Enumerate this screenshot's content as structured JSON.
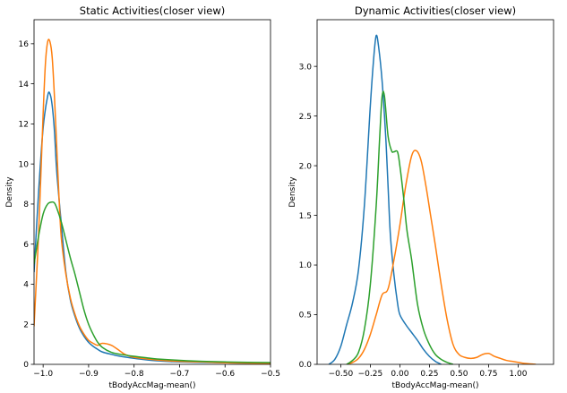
{
  "figure": {
    "background": "#ffffff"
  },
  "chart_data": [
    {
      "type": "line",
      "title": "Static Activities(closer view)",
      "xlabel": "tBodyAccMag-mean()",
      "ylabel": "Density",
      "xlim": [
        -1.02,
        -0.5
      ],
      "ylim": [
        0,
        17.2
      ],
      "xticks": [
        -1.0,
        -0.9,
        -0.8,
        -0.7,
        -0.6,
        -0.5
      ],
      "xtick_labels": [
        "−1.0",
        "−0.9",
        "−0.8",
        "−0.7",
        "−0.6",
        "−0.5"
      ],
      "yticks": [
        0,
        2,
        4,
        6,
        8,
        10,
        12,
        14,
        16
      ],
      "ytick_labels": [
        "0",
        "2",
        "4",
        "6",
        "8",
        "10",
        "12",
        "14",
        "16"
      ],
      "series": [
        {
          "name": "blue",
          "color": "#1f77b4",
          "x": [
            -1.02,
            -1.01,
            -1.0,
            -0.99,
            -0.985,
            -0.98,
            -0.975,
            -0.97,
            -0.96,
            -0.95,
            -0.94,
            -0.93,
            -0.92,
            -0.91,
            -0.9,
            -0.89,
            -0.88,
            -0.87,
            -0.85,
            -0.83,
            -0.8,
            -0.77,
            -0.75,
            -0.72,
            -0.7,
            -0.65,
            -0.6,
            -0.55,
            -0.5
          ],
          "y": [
            4.6,
            8.6,
            11.8,
            13.4,
            13.5,
            12.9,
            11.6,
            9.6,
            7.0,
            4.6,
            3.2,
            2.4,
            1.8,
            1.4,
            1.1,
            0.9,
            0.75,
            0.62,
            0.5,
            0.4,
            0.3,
            0.22,
            0.18,
            0.14,
            0.12,
            0.1,
            0.08,
            0.06,
            0.05
          ]
        },
        {
          "name": "orange",
          "color": "#ff7f0e",
          "x": [
            -1.02,
            -1.01,
            -1.0,
            -0.995,
            -0.99,
            -0.985,
            -0.98,
            -0.975,
            -0.97,
            -0.965,
            -0.96,
            -0.95,
            -0.94,
            -0.93,
            -0.92,
            -0.91,
            -0.9,
            -0.89,
            -0.88,
            -0.87,
            -0.85,
            -0.83,
            -0.82,
            -0.8,
            -0.75,
            -0.7,
            -0.65,
            -0.6,
            -0.55,
            -0.5
          ],
          "y": [
            1.9,
            6.5,
            12.5,
            15.0,
            16.1,
            16.1,
            15.3,
            13.3,
            10.8,
            8.3,
            6.3,
            4.5,
            3.3,
            2.5,
            1.9,
            1.5,
            1.2,
            1.05,
            0.95,
            1.05,
            0.95,
            0.65,
            0.5,
            0.35,
            0.22,
            0.15,
            0.12,
            0.08,
            0.06,
            0.04
          ]
        },
        {
          "name": "green",
          "color": "#2ca02c",
          "x": [
            -1.02,
            -1.01,
            -1.0,
            -0.99,
            -0.98,
            -0.975,
            -0.97,
            -0.96,
            -0.95,
            -0.94,
            -0.93,
            -0.92,
            -0.91,
            -0.9,
            -0.89,
            -0.88,
            -0.87,
            -0.85,
            -0.83,
            -0.8,
            -0.77,
            -0.75,
            -0.7,
            -0.65,
            -0.6,
            -0.55,
            -0.5
          ],
          "y": [
            5.0,
            6.4,
            7.5,
            8.0,
            8.1,
            8.05,
            7.8,
            7.1,
            6.2,
            5.3,
            4.5,
            3.6,
            2.7,
            2.0,
            1.5,
            1.1,
            0.85,
            0.6,
            0.5,
            0.4,
            0.32,
            0.27,
            0.2,
            0.15,
            0.12,
            0.1,
            0.09
          ]
        }
      ]
    },
    {
      "type": "line",
      "title": "Dynamic Activities(closer view)",
      "xlabel": "tBodyAccMag-mean()",
      "ylabel": "Density",
      "xlim": [
        -0.7,
        1.3
      ],
      "ylim": [
        0,
        3.47
      ],
      "xticks": [
        -0.5,
        -0.25,
        0.0,
        0.25,
        0.5,
        0.75,
        1.0
      ],
      "xtick_labels": [
        "−0.50",
        "−0.25",
        "0.00",
        "0.25",
        "0.50",
        "0.75",
        "1.00"
      ],
      "yticks": [
        0.0,
        0.5,
        1.0,
        1.5,
        2.0,
        2.5,
        3.0
      ],
      "ytick_labels": [
        "0.0",
        "0.5",
        "1.0",
        "1.5",
        "2.0",
        "2.5",
        "3.0"
      ],
      "series": [
        {
          "name": "blue",
          "color": "#1f77b4",
          "x": [
            -0.6,
            -0.55,
            -0.5,
            -0.45,
            -0.4,
            -0.35,
            -0.3,
            -0.25,
            -0.22,
            -0.2,
            -0.18,
            -0.15,
            -0.12,
            -0.1,
            -0.08,
            -0.05,
            -0.02,
            0.0,
            0.05,
            0.1,
            0.15,
            0.2,
            0.25,
            0.3,
            0.35
          ],
          "y": [
            0.0,
            0.05,
            0.18,
            0.4,
            0.62,
            0.95,
            1.6,
            2.6,
            3.1,
            3.31,
            3.2,
            2.85,
            2.3,
            1.8,
            1.3,
            0.9,
            0.62,
            0.5,
            0.4,
            0.32,
            0.24,
            0.15,
            0.08,
            0.03,
            0.0
          ]
        },
        {
          "name": "orange",
          "color": "#ff7f0e",
          "x": [
            -0.45,
            -0.4,
            -0.35,
            -0.3,
            -0.25,
            -0.2,
            -0.15,
            -0.1,
            -0.05,
            0.0,
            0.05,
            0.1,
            0.14,
            0.18,
            0.22,
            0.26,
            0.3,
            0.35,
            0.4,
            0.45,
            0.5,
            0.55,
            0.6,
            0.65,
            0.7,
            0.75,
            0.8,
            0.85,
            0.9,
            0.95,
            1.0,
            1.05,
            1.1,
            1.15
          ],
          "y": [
            0.0,
            0.02,
            0.06,
            0.15,
            0.3,
            0.5,
            0.7,
            0.76,
            1.05,
            1.4,
            1.8,
            2.1,
            2.15,
            2.05,
            1.8,
            1.5,
            1.2,
            0.8,
            0.45,
            0.2,
            0.1,
            0.07,
            0.06,
            0.07,
            0.1,
            0.11,
            0.08,
            0.06,
            0.04,
            0.03,
            0.02,
            0.01,
            0.005,
            0.0
          ]
        },
        {
          "name": "green",
          "color": "#2ca02c",
          "x": [
            -0.45,
            -0.4,
            -0.35,
            -0.3,
            -0.25,
            -0.2,
            -0.17,
            -0.15,
            -0.13,
            -0.1,
            -0.07,
            -0.05,
            -0.02,
            0.0,
            0.03,
            0.06,
            0.1,
            0.15,
            0.2,
            0.25,
            0.3,
            0.35,
            0.4,
            0.45
          ],
          "y": [
            0.0,
            0.04,
            0.12,
            0.35,
            0.8,
            1.6,
            2.3,
            2.7,
            2.7,
            2.3,
            2.15,
            2.14,
            2.14,
            2.0,
            1.7,
            1.35,
            1.05,
            0.6,
            0.35,
            0.2,
            0.1,
            0.05,
            0.02,
            0.0
          ]
        }
      ]
    }
  ]
}
